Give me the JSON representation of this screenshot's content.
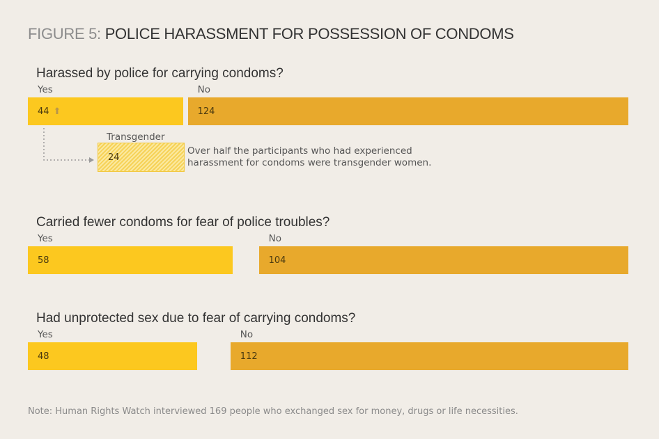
{
  "title": {
    "prefix": "FIGURE 5:",
    "main": "POLICE HARASSMENT FOR POSSESSION OF CONDOMS"
  },
  "chart_data": {
    "type": "bar",
    "orientation": "horizontal",
    "stacked_pair": true,
    "colors": {
      "yes": "#fcc81f",
      "no": "#e8a92c",
      "transgender": "#f6d258"
    },
    "questions": [
      {
        "question": "Harassed by police for carrying condoms?",
        "yes_label": "Yes",
        "no_label": "No",
        "yes": 44,
        "no": 124
      },
      {
        "question": "Carried fewer condoms for fear of police troubles?",
        "yes_label": "Yes",
        "no_label": "No",
        "yes": 58,
        "no": 104
      },
      {
        "question": "Had unprotected sex due to fear of carrying condoms?",
        "yes_label": "Yes",
        "no_label": "No",
        "yes": 48,
        "no": 112
      }
    ],
    "subset": {
      "label": "Transgender",
      "value": 24,
      "of_question": 0,
      "annotation_line1": "Over half the participants who had experienced",
      "annotation_line2": "harassment for condoms were transgender women."
    },
    "note": "Note: Human Rights Watch interviewed 169 people who exchanged sex for money, drugs or life necessities."
  }
}
